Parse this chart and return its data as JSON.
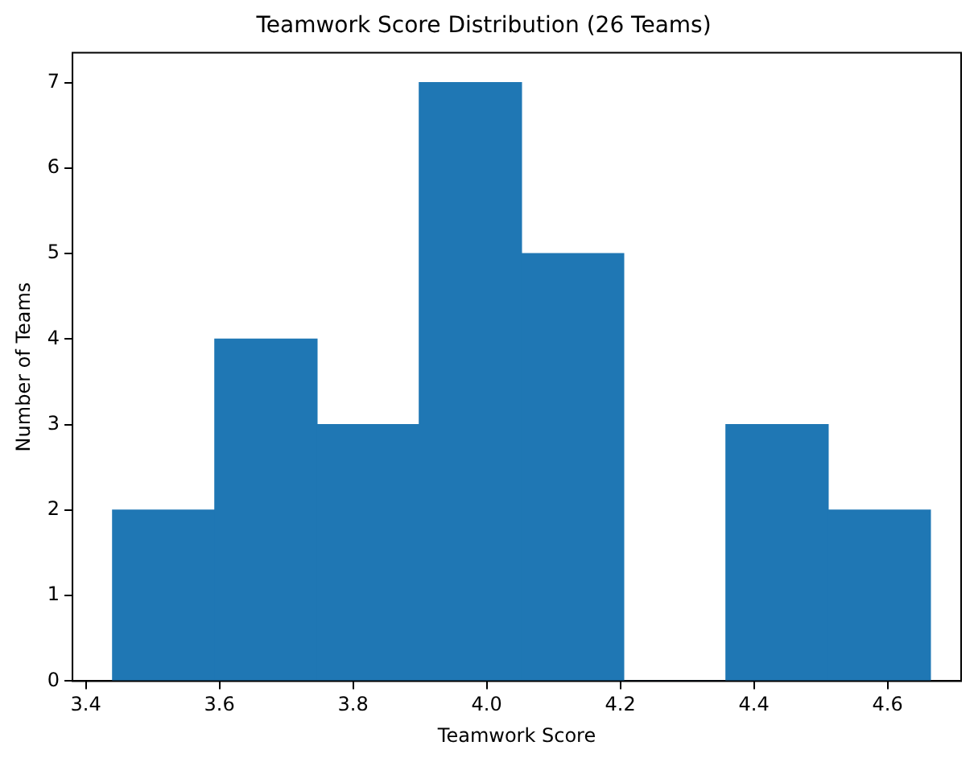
{
  "chart_data": {
    "type": "histogram",
    "title": "Teamwork Score Distribution (26 Teams)",
    "xlabel": "Teamwork Score",
    "ylabel": "Number of Teams",
    "bins": [
      3.44,
      3.593,
      3.746,
      3.899,
      4.052,
      4.205,
      4.358,
      4.511,
      4.664
    ],
    "values": [
      2,
      4,
      3,
      7,
      5,
      0,
      3,
      2
    ],
    "color": "#1f77b4",
    "xlim": [
      3.38,
      4.71
    ],
    "xticks": [
      3.4,
      3.6,
      3.8,
      {
        "value": 4,
        "label": "4.0"
      },
      4.2,
      4.4,
      4.6
    ],
    "ylim": [
      0,
      7.35
    ],
    "yticks": [
      0,
      1,
      2,
      3,
      4,
      5,
      6,
      7
    ],
    "grid": false,
    "legend": false
  }
}
